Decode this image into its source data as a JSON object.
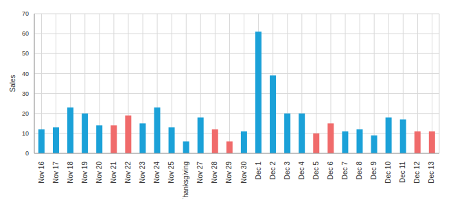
{
  "chart_data": {
    "type": "bar",
    "y_label": "Sales",
    "categories": [
      "Nov 16",
      "Nov 17",
      "Nov 18",
      "Nov 19",
      "Nov 20",
      "Nov 21",
      "Nov 22",
      "Nov 23",
      "Nov 24",
      "Nov 25",
      "Thanksgiving",
      "Nov 27",
      "Nov 28",
      "Nov 29",
      "Nov 30",
      "Dec 1",
      "Dec 2",
      "Dec 3",
      "Dec 4",
      "Dec 5",
      "Dec 6",
      "Dec 7",
      "Dec 8",
      "Dec 9",
      "Dec 10",
      "Dec 11",
      "Dec 12",
      "Dec 13"
    ],
    "values": [
      12,
      13,
      23,
      20,
      14,
      14,
      19,
      15,
      23,
      13,
      6,
      18,
      12,
      6,
      11,
      61,
      39,
      20,
      20,
      10,
      15,
      11,
      12,
      9,
      18,
      17,
      11,
      11
    ],
    "colors": [
      "#1ba1d8",
      "#1ba1d8",
      "#1ba1d8",
      "#1ba1d8",
      "#1ba1d8",
      "#f06b6b",
      "#f06b6b",
      "#1ba1d8",
      "#1ba1d8",
      "#1ba1d8",
      "#1ba1d8",
      "#1ba1d8",
      "#f06b6b",
      "#f06b6b",
      "#1ba1d8",
      "#1ba1d8",
      "#1ba1d8",
      "#1ba1d8",
      "#1ba1d8",
      "#f06b6b",
      "#f06b6b",
      "#1ba1d8",
      "#1ba1d8",
      "#1ba1d8",
      "#1ba1d8",
      "#1ba1d8",
      "#f06b6b",
      "#f06b6b"
    ],
    "ylim": [
      0,
      70
    ],
    "yticks": [
      0,
      10,
      20,
      30,
      40,
      50,
      60,
      70
    ],
    "grid": true
  }
}
